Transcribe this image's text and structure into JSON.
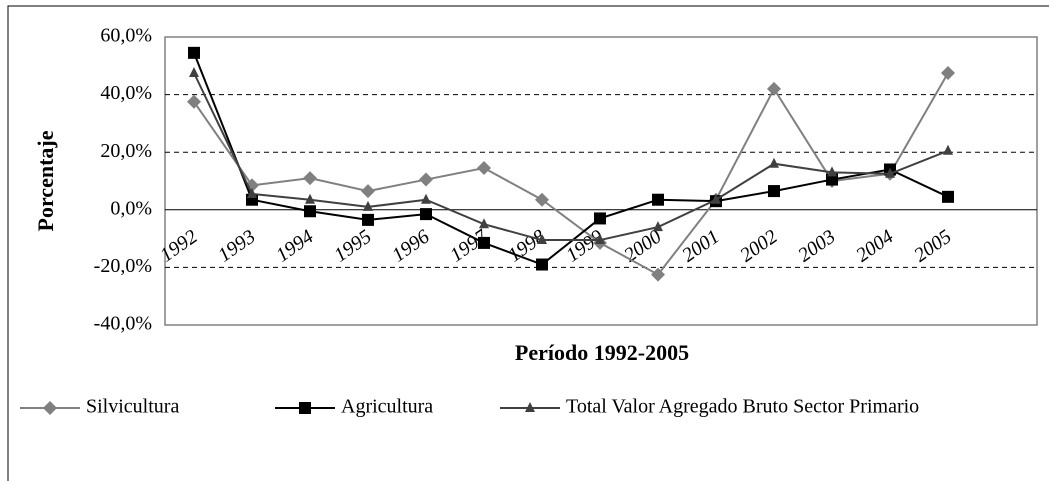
{
  "chart_data": {
    "type": "line",
    "x_label": "Período 1992-2005",
    "y_label": "Porcentaje",
    "categories": [
      "1992",
      "1993",
      "1994",
      "1995",
      "1996",
      "1997",
      "1998",
      "1999",
      "2000",
      "2001",
      "2002",
      "2003",
      "2004",
      "2005"
    ],
    "series": [
      {
        "name": "Silvicultura",
        "color": "#808080",
        "marker": "diamond",
        "values": [
          37.5,
          8.5,
          11,
          6.5,
          10.5,
          14.5,
          3.5,
          -11.5,
          -22.5,
          3.5,
          42,
          10,
          12.5,
          47.5
        ]
      },
      {
        "name": "Agricultura",
        "color": "#000000",
        "marker": "square",
        "values": [
          54.5,
          3.5,
          -0.5,
          -3.5,
          -1.5,
          -11.5,
          -19,
          -3,
          3.5,
          3,
          6.5,
          10.5,
          14,
          4.5
        ]
      },
      {
        "name": "Total Valor Agregado Bruto Sector Primario",
        "color": "#404040",
        "marker": "triangle",
        "values": [
          47.5,
          5.5,
          3.5,
          1,
          3.5,
          -5,
          -10.5,
          -10.5,
          -6,
          3.5,
          16,
          13,
          12.5,
          20.5
        ]
      }
    ],
    "ylim": [
      -40,
      60
    ],
    "yticks": [
      {
        "value": -40,
        "label": "-40,0%"
      },
      {
        "value": -20,
        "label": "-20,0%"
      },
      {
        "value": 0,
        "label": "0,0%"
      },
      {
        "value": 20,
        "label": "20,0%"
      },
      {
        "value": 40,
        "label": "40,0%"
      },
      {
        "value": 60,
        "label": "60,0%"
      }
    ],
    "grid": true,
    "legend": "bottom"
  }
}
